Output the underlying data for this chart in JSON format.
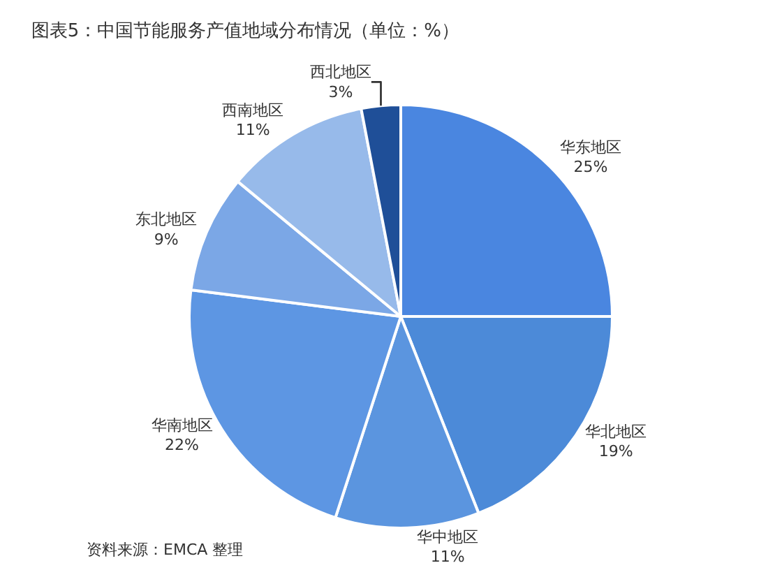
{
  "chart_data": {
    "type": "pie",
    "title": "图表5：中国节能服务产值地域分布情况（单位：%）",
    "categories": [
      "华东地区",
      "华北地区",
      "华中地区",
      "华南地区",
      "东北地区",
      "西南地区",
      "西北地区"
    ],
    "values": [
      25,
      19,
      11,
      22,
      9,
      11,
      3
    ],
    "value_labels": [
      "25%",
      "19%",
      "11%",
      "22%",
      "9%",
      "11%",
      "3%"
    ],
    "colors": [
      "#4a86e0",
      "#4c8ad8",
      "#5b95df",
      "#5d96e3",
      "#7ba7e6",
      "#97baea",
      "#1f4f98"
    ],
    "annotations": [
      "资料来源：EMCA 整理"
    ]
  }
}
